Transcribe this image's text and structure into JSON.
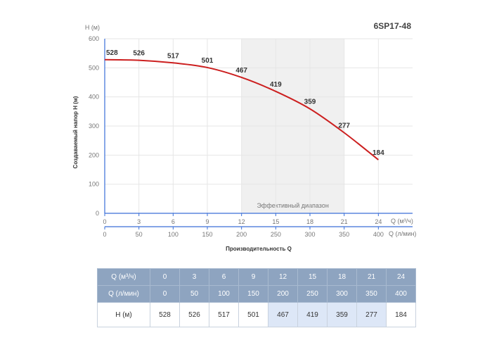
{
  "model": "6SP17-48",
  "chart_data": {
    "type": "line",
    "ylabel": "Создаваемый напор H (м)",
    "ylabel_top": "H (м)",
    "xlabel": "Производительность Q",
    "x_unit_m3h": "Q (м³/ч)",
    "x_unit_lmin": "Q (л/мин)",
    "x_m3h": [
      0,
      3,
      6,
      9,
      12,
      15,
      18,
      21,
      24
    ],
    "x_lmin": [
      0,
      50,
      100,
      150,
      200,
      250,
      300,
      350,
      400
    ],
    "yticks": [
      0,
      100,
      200,
      300,
      400,
      500,
      600
    ],
    "ylim": [
      0,
      600
    ],
    "xlim": [
      0,
      27
    ],
    "series": [
      {
        "values": [
          528,
          526,
          517,
          501,
          467,
          419,
          359,
          277,
          184
        ]
      }
    ],
    "effective_range": {
      "from": 12,
      "to": 21,
      "label": "Эффективный диапазон"
    },
    "grid": true,
    "line_color": "#cc1f1f"
  },
  "table": {
    "rows": [
      {
        "label": "Q (м³/ч)",
        "cells": [
          "0",
          "3",
          "6",
          "9",
          "12",
          "15",
          "18",
          "21",
          "24"
        ]
      },
      {
        "label": "Q (л/мин)",
        "cells": [
          "0",
          "50",
          "100",
          "150",
          "200",
          "250",
          "300",
          "350",
          "400"
        ]
      },
      {
        "label": "H (м)",
        "cells": [
          "528",
          "526",
          "517",
          "501",
          "467",
          "419",
          "359",
          "277",
          "184"
        ]
      }
    ],
    "highlight_columns": [
      4,
      5,
      6,
      7
    ],
    "header_color": "#8ea4c0",
    "highlight_color": "#dde7f7"
  }
}
